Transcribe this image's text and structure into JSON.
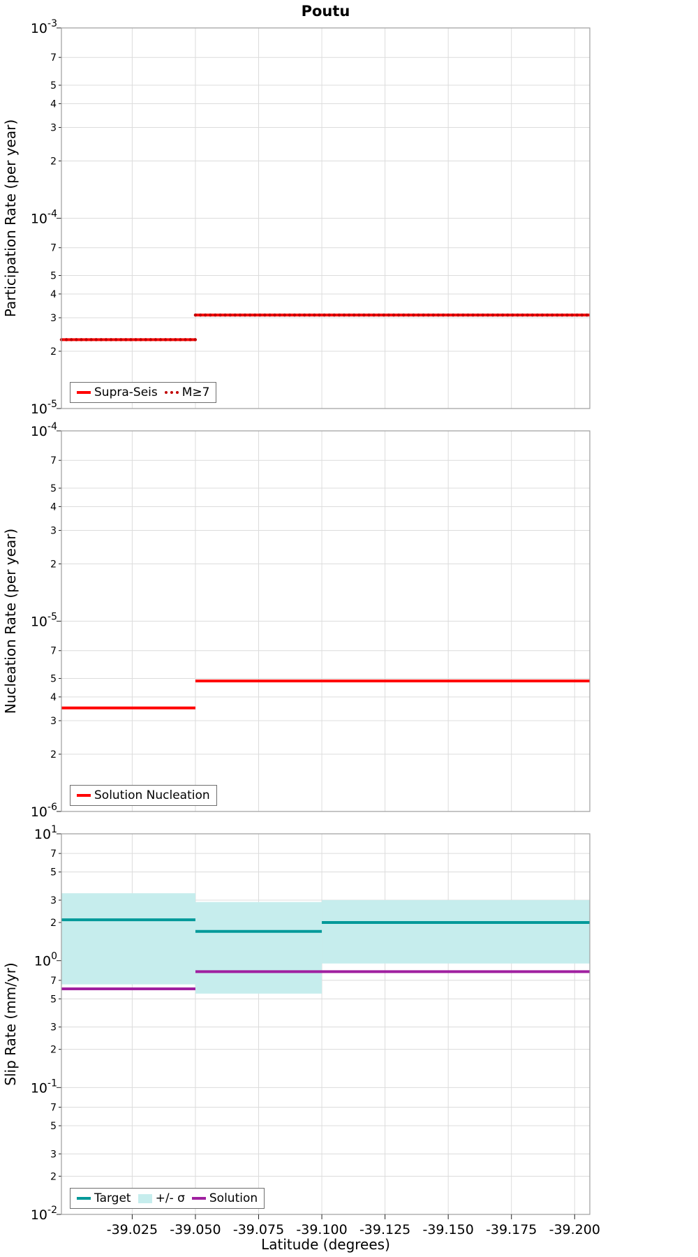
{
  "page": {
    "title": "Poutu",
    "xlabel": "Latitude (degrees)"
  },
  "xticks": [
    -39.025,
    -39.05,
    -39.075,
    -39.1,
    -39.125,
    -39.15,
    -39.175,
    -39.2
  ],
  "chart_data": [
    {
      "id": "participation",
      "type": "line",
      "ylabel": "Participation Rate (per year)",
      "yscale": "log",
      "ylim": [
        1e-05,
        0.001
      ],
      "xlim": [
        -38.997,
        -39.206
      ],
      "minor_tick_labels": [
        7,
        5,
        4,
        3,
        2
      ],
      "series": [
        {
          "name": "Supra-Seis",
          "color": "#ff0000",
          "width": 4,
          "segments": [
            {
              "x": [
                -38.997,
                -39.05
              ],
              "y": 2.3e-05
            },
            {
              "x": [
                -39.05,
                -39.206
              ],
              "y": 3.1e-05
            }
          ]
        },
        {
          "name": "M>=7",
          "color": "#c00000",
          "width": 4.5,
          "dash": "0.1 7",
          "segments": [
            {
              "x": [
                -38.997,
                -39.05
              ],
              "y": 2.3e-05
            },
            {
              "x": [
                -39.05,
                -39.206
              ],
              "y": 3.1e-05
            }
          ]
        }
      ],
      "legend": [
        {
          "label": "Supra-Seis",
          "style": "line",
          "color": "#ff0000"
        },
        {
          "label": "M≥7",
          "style": "line-dotted",
          "color": "#c00000"
        }
      ]
    },
    {
      "id": "nucleation",
      "type": "line",
      "ylabel": "Nucleation Rate (per year)",
      "yscale": "log",
      "ylim": [
        1e-06,
        0.0001
      ],
      "xlim": [
        -38.997,
        -39.206
      ],
      "minor_tick_labels": [
        7,
        5,
        4,
        3,
        2
      ],
      "series": [
        {
          "name": "Solution Nucleation",
          "color": "#ff0000",
          "width": 4,
          "segments": [
            {
              "x": [
                -38.997,
                -39.05
              ],
              "y": 3.5e-06
            },
            {
              "x": [
                -39.05,
                -39.1
              ],
              "y": 4.85e-06
            },
            {
              "x": [
                -39.1,
                -39.206
              ],
              "y": 4.85e-06
            }
          ]
        }
      ],
      "legend": [
        {
          "label": "Solution Nucleation",
          "style": "line",
          "color": "#ff0000"
        }
      ]
    },
    {
      "id": "slip-rate",
      "type": "line",
      "ylabel": "Slip Rate (mm/yr)",
      "yscale": "log",
      "ylim": [
        0.01,
        10.0
      ],
      "xlim": [
        -38.997,
        -39.206
      ],
      "minor_tick_labels": [
        7,
        5,
        3,
        2
      ],
      "series": [
        {
          "name": "+/- sigma band",
          "type": "band",
          "color": "#c6eded",
          "segments": [
            {
              "x": [
                -38.997,
                -39.05
              ],
              "lo": 0.65,
              "hi": 3.4
            },
            {
              "x": [
                -39.05,
                -39.1
              ],
              "lo": 0.55,
              "hi": 2.9
            },
            {
              "x": [
                -39.1,
                -39.206
              ],
              "lo": 0.95,
              "hi": 3.0
            }
          ]
        },
        {
          "name": "Target",
          "color": "#009999",
          "width": 4,
          "segments": [
            {
              "x": [
                -38.997,
                -39.05
              ],
              "y": 2.1
            },
            {
              "x": [
                -39.05,
                -39.1
              ],
              "y": 1.7
            },
            {
              "x": [
                -39.1,
                -39.206
              ],
              "y": 2.0
            }
          ]
        },
        {
          "name": "Solution",
          "color": "#a020a0",
          "width": 4,
          "segments": [
            {
              "x": [
                -38.997,
                -39.05
              ],
              "y": 0.6
            },
            {
              "x": [
                -39.05,
                -39.206
              ],
              "y": 0.82
            }
          ]
        }
      ],
      "legend": [
        {
          "label": "Target",
          "style": "line",
          "color": "#009999"
        },
        {
          "label": "+/- σ",
          "style": "band",
          "color": "#c6eded"
        },
        {
          "label": "Solution",
          "style": "line",
          "color": "#a020a0"
        }
      ]
    }
  ]
}
